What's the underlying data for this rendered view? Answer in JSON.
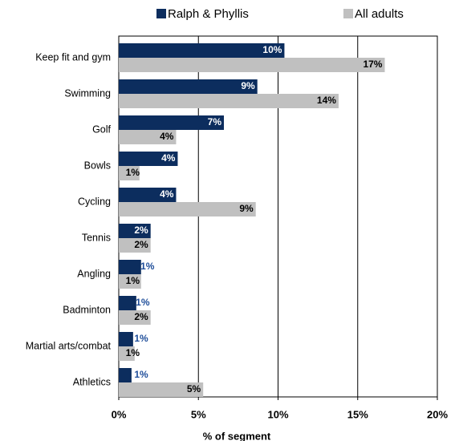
{
  "chart_data": {
    "type": "hbar",
    "categories": [
      "Keep fit and gym",
      "Swimming",
      "Golf",
      "Bowls",
      "Cycling",
      "Tennis",
      "Angling",
      "Badminton",
      "Martial arts/combat",
      "Athletics"
    ],
    "series": [
      {
        "name": "Ralph & Phyllis",
        "color": "#0c2d5e",
        "values": [
          10.4,
          8.7,
          6.6,
          3.7,
          3.6,
          2.0,
          1.4,
          1.1,
          0.9,
          0.8
        ],
        "value_labels": [
          "10%",
          "9%",
          "7%",
          "4%",
          "4%",
          "2%",
          "1%",
          "1%",
          "1%",
          "1%"
        ]
      },
      {
        "name": "All adults",
        "color": "#c0c0c0",
        "values": [
          16.7,
          13.8,
          3.6,
          1.3,
          8.6,
          2.0,
          1.4,
          2.0,
          1.0,
          5.3
        ],
        "value_labels": [
          "17%",
          "14%",
          "4%",
          "1%",
          "9%",
          "2%",
          "1%",
          "2%",
          "1%",
          "5%"
        ]
      }
    ],
    "xlim": [
      0,
      20
    ],
    "xticks": [
      {
        "value": 0,
        "label": "0%"
      },
      {
        "value": 5,
        "label": "5%"
      },
      {
        "value": 10,
        "label": "10%"
      },
      {
        "value": 15,
        "label": "15%"
      },
      {
        "value": 20,
        "label": "20%"
      }
    ],
    "xlabel": "% of segment",
    "grid": true
  }
}
